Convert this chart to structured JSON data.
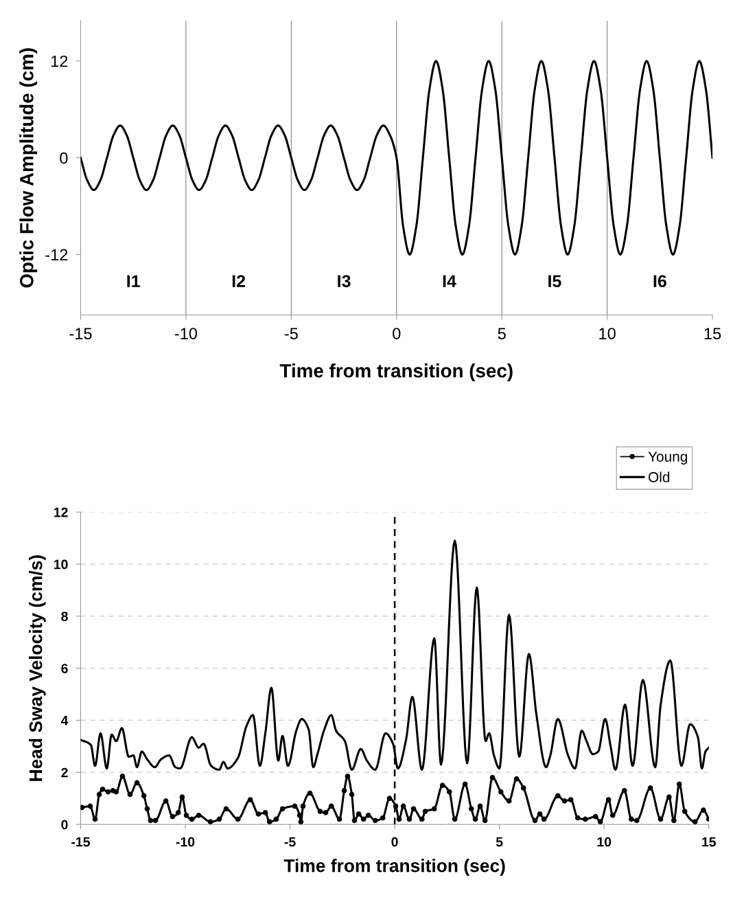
{
  "chart_data": [
    {
      "type": "line",
      "xlabel": "Time from transition (sec)",
      "ylabel": "Optic Flow Amplitude (cm)",
      "xlim": [
        -15,
        15
      ],
      "xticks": [
        -15,
        -10,
        -5,
        0,
        5,
        10,
        15
      ],
      "ylim": [
        -19.5,
        17
      ],
      "yticks": [
        -12,
        0,
        12
      ],
      "grid": false,
      "legend": false,
      "ref_lines": [
        {
          "axis": "x",
          "value": -10,
          "color": "#808080"
        },
        {
          "axis": "x",
          "value": -5,
          "color": "#808080"
        },
        {
          "axis": "x",
          "value": 0,
          "color": "#808080"
        },
        {
          "axis": "x",
          "value": 5,
          "color": "#808080"
        },
        {
          "axis": "x",
          "value": 10,
          "color": "#808080"
        }
      ],
      "annotations": [
        "I1",
        "I2",
        "I3",
        "I4",
        "I5",
        "I6"
      ],
      "series": [
        {
          "color": "#000000",
          "x": [
            -15,
            -14.6875,
            -14.375,
            -14.0625,
            -13.75,
            -13.4375,
            -13.125,
            -12.8125,
            -12.5,
            -12.1875,
            -11.875,
            -11.5625,
            -11.25,
            -10.9375,
            -10.625,
            -10.3125,
            -10,
            -9.6875,
            -9.375,
            -9.0625,
            -8.75,
            -8.4375,
            -8.125,
            -7.8125,
            -7.5,
            -7.1875,
            -6.875,
            -6.5625,
            -6.25,
            -5.9375,
            -5.625,
            -5.3125,
            -5,
            -4.6875,
            -4.375,
            -4.0625,
            -3.75,
            -3.4375,
            -3.125,
            -2.8125,
            -2.5,
            -2.1875,
            -1.875,
            -1.5625,
            -1.25,
            -0.9375,
            -0.625,
            -0.3125,
            0,
            0.3125,
            0.625,
            0.9375,
            1.25,
            1.5625,
            1.875,
            2.1875,
            2.5,
            2.8125,
            3.125,
            3.4375,
            3.75,
            4.0625,
            4.375,
            4.6875,
            5,
            5.3125,
            5.625,
            5.9375,
            6.25,
            6.5625,
            6.875,
            7.1875,
            7.5,
            7.8125,
            8.125,
            8.4375,
            8.75,
            9.0625,
            9.375,
            9.6875,
            10,
            10.3125,
            10.625,
            10.9375,
            11.25,
            11.5625,
            11.875,
            12.1875,
            12.5,
            12.8125,
            13.125,
            13.4375,
            13.75,
            14.0625,
            14.375,
            14.6875,
            15
          ],
          "values": [
            0,
            -2.8,
            -4,
            -2.8,
            0,
            2.8,
            4,
            2.8,
            0,
            -2.8,
            -4,
            -2.8,
            0,
            2.8,
            4,
            2.8,
            0,
            -2.8,
            -4,
            -2.8,
            0,
            2.8,
            4,
            2.8,
            0,
            -2.8,
            -4,
            -2.8,
            0,
            2.8,
            4,
            2.8,
            0,
            -2.8,
            -4,
            -2.8,
            0,
            2.8,
            4,
            2.8,
            0,
            -2.8,
            -4,
            -2.8,
            0,
            2.8,
            4,
            2.8,
            0,
            -8.5,
            -12,
            -8.5,
            0,
            8.5,
            12,
            8.5,
            0,
            -8.5,
            -12,
            -8.5,
            0,
            8.5,
            12,
            8.5,
            0,
            -8.5,
            -12,
            -8.5,
            0,
            8.5,
            12,
            8.5,
            0,
            -8.5,
            -12,
            -8.5,
            0,
            8.5,
            12,
            8.5,
            0,
            -8.5,
            -12,
            -8.5,
            0,
            8.5,
            12,
            8.5,
            0,
            -8.5,
            -12,
            -8.5,
            0,
            8.5,
            12,
            8.5,
            0
          ]
        }
      ]
    },
    {
      "type": "line",
      "xlabel": "Time from transition (sec)",
      "ylabel": "Head Sway Velocity (cm/s)",
      "xlim": [
        -15,
        15
      ],
      "xticks": [
        -15,
        -10,
        -5,
        0,
        5,
        10,
        15
      ],
      "ylim": [
        0,
        12
      ],
      "yticks": [
        0,
        2,
        4,
        6,
        8,
        10,
        12
      ],
      "grid": "y",
      "legend": "top right",
      "ref_lines": [
        {
          "axis": "x",
          "value": 0,
          "color": "#000000",
          "line_style": "dashed"
        }
      ],
      "series": [
        {
          "name": "Young",
          "color": "#000000",
          "marker": "circle",
          "x": [
            -14.93,
            -14.54,
            -14.31,
            -14.11,
            -13.95,
            -13.69,
            -13.46,
            -13.3,
            -13.0,
            -12.64,
            -12.31,
            -11.98,
            -11.82,
            -11.66,
            -11.43,
            -10.93,
            -10.61,
            -10.34,
            -10.15,
            -9.95,
            -9.69,
            -9.36,
            -8.8,
            -8.38,
            -8.05,
            -7.49,
            -6.9,
            -6.51,
            -6.18,
            -5.98,
            -5.66,
            -5.36,
            -4.77,
            -4.54,
            -4.48,
            -4.38,
            -4.05,
            -3.56,
            -3.3,
            -3.03,
            -2.64,
            -2.41,
            -2.25,
            -2.05,
            -1.92,
            -1.72,
            -1.49,
            -1.26,
            -0.93,
            -0.57,
            -0.25,
            0.05,
            0.21,
            0.41,
            0.7,
            0.9,
            1.3,
            1.46,
            1.89,
            2.28,
            2.61,
            2.87,
            3.36,
            3.66,
            3.85,
            4.08,
            4.31,
            4.67,
            5.07,
            5.46,
            5.82,
            6.15,
            6.7,
            6.93,
            7.13,
            7.79,
            8.11,
            8.41,
            8.74,
            9.1,
            9.59,
            9.82,
            10.21,
            10.41,
            10.97,
            11.3,
            11.56,
            12.21,
            12.7,
            13.1,
            13.33,
            13.59,
            13.85,
            14.34,
            14.74,
            15.0
          ],
          "values": [
            0.65,
            0.7,
            0.2,
            1.15,
            1.35,
            1.25,
            1.3,
            1.25,
            1.85,
            1.15,
            1.6,
            1.1,
            0.6,
            0.15,
            0.15,
            0.9,
            0.3,
            0.45,
            1.05,
            0.35,
            0.2,
            0.35,
            0.1,
            0.2,
            0.6,
            0.2,
            0.95,
            0.4,
            0.45,
            0.1,
            0.2,
            0.6,
            0.7,
            0.35,
            0.1,
            0.7,
            1.2,
            0.5,
            0.45,
            0.7,
            0.2,
            1.3,
            1.85,
            1.15,
            0.15,
            0.4,
            0.2,
            0.35,
            0.15,
            0.25,
            1.0,
            0.7,
            0.2,
            0.7,
            0.2,
            0.6,
            0.2,
            0.5,
            0.6,
            1.5,
            1.25,
            0.2,
            1.55,
            0.6,
            0.2,
            0.7,
            0.15,
            1.8,
            1.25,
            0.9,
            1.75,
            1.4,
            0.15,
            0.4,
            0.2,
            1.1,
            0.9,
            0.95,
            0.25,
            0.2,
            0.3,
            0.1,
            0.95,
            0.35,
            1.3,
            0.2,
            0.15,
            1.4,
            0.2,
            1.05,
            0.15,
            1.55,
            0.5,
            0.1,
            0.55,
            0.2
          ]
        },
        {
          "name": "Old",
          "color": "#000000",
          "marker": "none",
          "x": [
            -15.0,
            -14.51,
            -14.31,
            -14.05,
            -13.75,
            -13.52,
            -13.3,
            -13.03,
            -12.7,
            -12.48,
            -12.31,
            -12.08,
            -11.82,
            -11.46,
            -11.16,
            -10.77,
            -10.48,
            -10.25,
            -9.69,
            -9.36,
            -9.13,
            -8.77,
            -8.38,
            -8.18,
            -7.98,
            -7.49,
            -7.07,
            -6.77,
            -6.44,
            -6.18,
            -5.89,
            -5.56,
            -5.36,
            -5.1,
            -4.7,
            -4.44,
            -4.11,
            -3.89,
            -3.69,
            -3.36,
            -3.03,
            -2.8,
            -2.38,
            -2.05,
            -1.62,
            -1.33,
            -0.93,
            -0.44,
            -0.08,
            0.15,
            0.54,
            0.84,
            1.3,
            1.89,
            2.21,
            2.87,
            3.46,
            3.92,
            4.34,
            4.51,
            4.74,
            5.0,
            5.46,
            5.95,
            6.41,
            6.77,
            7.23,
            7.43,
            7.79,
            8.28,
            8.61,
            8.93,
            9.16,
            9.46,
            9.72,
            10.05,
            10.31,
            10.54,
            11.0,
            11.36,
            11.85,
            12.44,
            12.7,
            13.16,
            13.69,
            14.11,
            14.48,
            14.67,
            14.84,
            15.0
          ],
          "values": [
            3.25,
            3.05,
            2.25,
            3.5,
            2.15,
            3.45,
            3.2,
            3.7,
            2.6,
            2.65,
            2.2,
            2.8,
            2.5,
            2.2,
            2.5,
            2.65,
            2.2,
            2.15,
            3.35,
            2.95,
            3.1,
            2.25,
            2.1,
            2.4,
            2.15,
            2.55,
            3.8,
            4.2,
            2.25,
            3.5,
            5.25,
            2.45,
            3.4,
            2.25,
            3.6,
            4.05,
            3.65,
            2.2,
            2.7,
            3.65,
            4.2,
            3.6,
            3.2,
            2.1,
            2.9,
            2.45,
            2.1,
            3.5,
            3.1,
            2.15,
            3.25,
            4.9,
            2.1,
            7.15,
            2.3,
            10.9,
            2.35,
            9.1,
            3.2,
            3.5,
            2.65,
            2.15,
            8.05,
            2.6,
            6.55,
            4.2,
            2.2,
            2.65,
            4.05,
            2.65,
            2.15,
            3.6,
            3.2,
            2.7,
            2.8,
            4.05,
            3.0,
            2.1,
            4.6,
            2.25,
            5.55,
            2.2,
            4.6,
            6.3,
            2.25,
            3.85,
            3.35,
            2.15,
            2.8,
            2.95
          ]
        }
      ]
    }
  ]
}
